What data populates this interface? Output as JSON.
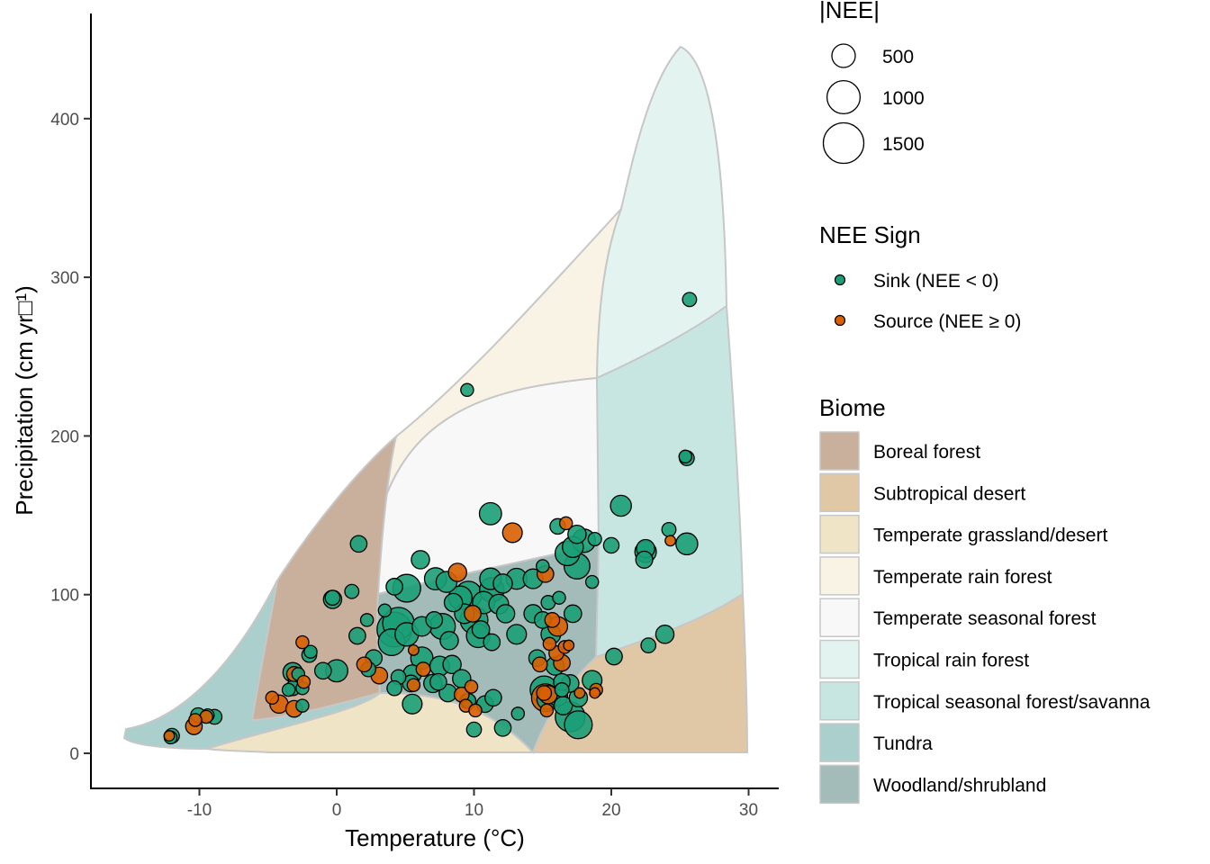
{
  "chart_data": {
    "type": "scatter",
    "title": "",
    "xlabel": "Temperature (°C)",
    "ylabel": "Precipitation (cm yr□¹)",
    "xlim": [
      -18,
      32
    ],
    "ylim": [
      -22,
      465
    ],
    "x_ticks": [
      -10,
      0,
      10,
      20,
      30
    ],
    "y_ticks": [
      0,
      100,
      200,
      300,
      400
    ],
    "grid": false,
    "legend_position": "right",
    "size_legend": {
      "title": "|NEE|",
      "items": [
        {
          "label": "500",
          "value": 500
        },
        {
          "label": "1000",
          "value": 1000
        },
        {
          "label": "1500",
          "value": 1500
        }
      ]
    },
    "sign_legend": {
      "title": "NEE Sign",
      "items": [
        {
          "label": "Sink (NEE < 0)",
          "color": "#1b9e77"
        },
        {
          "label": "Source (NEE ≥ 0)",
          "color": "#d95f02"
        }
      ]
    },
    "biome_legend": {
      "title": "Biome",
      "items": [
        {
          "label": "Boreal forest",
          "color": "#c9b09c"
        },
        {
          "label": "Subtropical desert",
          "color": "#e0c8a7"
        },
        {
          "label": "Temperate grassland/desert",
          "color": "#f0e4c6"
        },
        {
          "label": "Temperate rain forest",
          "color": "#f8f3e4"
        },
        {
          "label": "Temperate seasonal forest",
          "color": "#f8f8f8"
        },
        {
          "label": "Tropical rain forest",
          "color": "#e3f3f0"
        },
        {
          "label": "Tropical seasonal forest/savanna",
          "color": "#c7e6e2"
        },
        {
          "label": "Tundra",
          "color": "#abcfcc"
        },
        {
          "label": "Woodland/shrubland",
          "color": "#a3bcba"
        }
      ]
    },
    "series": [
      {
        "name": "Sink (NEE < 0)",
        "color": "#1b9e77",
        "points": [
          [
            25.7,
            286,
            180
          ],
          [
            9.5,
            229,
            150
          ],
          [
            25.5,
            186,
            200
          ],
          [
            25.4,
            187,
            150
          ],
          [
            11.2,
            151,
            450
          ],
          [
            20.7,
            156,
            400
          ],
          [
            24.2,
            141,
            180
          ],
          [
            25.5,
            132,
            430
          ],
          [
            22.5,
            129,
            300
          ],
          [
            22.5,
            127,
            420
          ],
          [
            22.4,
            122,
            260
          ],
          [
            20.0,
            131,
            220
          ],
          [
            18.0,
            134,
            500
          ],
          [
            18.8,
            135,
            160
          ],
          [
            16.1,
            143,
            220
          ],
          [
            17.5,
            138,
            300
          ],
          [
            17.2,
            130,
            400
          ],
          [
            16.8,
            126,
            550
          ],
          [
            17.5,
            118,
            600
          ],
          [
            18.6,
            108,
            150
          ],
          [
            15.0,
            118,
            150
          ],
          [
            14.3,
            110,
            350
          ],
          [
            13.1,
            110,
            400
          ],
          [
            12.1,
            107,
            330
          ],
          [
            11.2,
            110,
            420
          ],
          [
            11.3,
            103,
            550
          ],
          [
            10.7,
            95,
            450
          ],
          [
            9.6,
            100,
            650
          ],
          [
            9.0,
            98,
            500
          ],
          [
            8.5,
            95,
            300
          ],
          [
            8.0,
            108,
            400
          ],
          [
            7.2,
            110,
            450
          ],
          [
            6.1,
            122,
            300
          ],
          [
            5.1,
            104,
            700
          ],
          [
            4.2,
            105,
            250
          ],
          [
            3.5,
            90,
            150
          ],
          [
            4.5,
            82,
            900
          ],
          [
            4.2,
            78,
            1100
          ],
          [
            4.0,
            70,
            650
          ],
          [
            5.1,
            75,
            500
          ],
          [
            6.2,
            80,
            350
          ],
          [
            7.1,
            84,
            250
          ],
          [
            7.7,
            80,
            600
          ],
          [
            8.2,
            71,
            300
          ],
          [
            9.3,
            88,
            350
          ],
          [
            10.0,
            84,
            700
          ],
          [
            10.5,
            78,
            280
          ],
          [
            10.3,
            74,
            500
          ],
          [
            11.3,
            70,
            250
          ],
          [
            11.8,
            94,
            350
          ],
          [
            12.3,
            88,
            300
          ],
          [
            13.1,
            75,
            350
          ],
          [
            14.3,
            88,
            300
          ],
          [
            15.0,
            84,
            250
          ],
          [
            15.4,
            95,
            180
          ],
          [
            16.2,
            98,
            150
          ],
          [
            17.2,
            88,
            280
          ],
          [
            15.6,
            75,
            350
          ],
          [
            14.6,
            60,
            250
          ],
          [
            15.9,
            55,
            300
          ],
          [
            16.4,
            45,
            250
          ],
          [
            15.1,
            40,
            700
          ],
          [
            15.3,
            34,
            350
          ],
          [
            16.1,
            36,
            350
          ],
          [
            17.0,
            44,
            280
          ],
          [
            16.4,
            40,
            180
          ],
          [
            16.5,
            30,
            300
          ],
          [
            17.0,
            23,
            800
          ],
          [
            17.6,
            18,
            700
          ],
          [
            17.6,
            35,
            300
          ],
          [
            18.6,
            46,
            350
          ],
          [
            20.2,
            61,
            250
          ],
          [
            22.7,
            68,
            200
          ],
          [
            23.9,
            75,
            300
          ],
          [
            13.2,
            25,
            150
          ],
          [
            12.1,
            16,
            250
          ],
          [
            10.0,
            15,
            200
          ],
          [
            10.8,
            31,
            250
          ],
          [
            11.4,
            35,
            250
          ],
          [
            9.5,
            33,
            200
          ],
          [
            8.1,
            38,
            280
          ],
          [
            7.5,
            55,
            350
          ],
          [
            7.0,
            44,
            300
          ],
          [
            6.2,
            60,
            450
          ],
          [
            5.5,
            50,
            300
          ],
          [
            5.4,
            44,
            250
          ],
          [
            4.5,
            48,
            200
          ],
          [
            4.2,
            41,
            200
          ],
          [
            5.5,
            31,
            350
          ],
          [
            7.4,
            45,
            250
          ],
          [
            8.4,
            56,
            300
          ],
          [
            9.1,
            47,
            300
          ],
          [
            9.6,
            33,
            200
          ],
          [
            2.7,
            60,
            250
          ],
          [
            2.3,
            53,
            200
          ],
          [
            1.5,
            74,
            250
          ],
          [
            2.2,
            84,
            150
          ],
          [
            1.1,
            102,
            180
          ],
          [
            -0.3,
            97,
            300
          ],
          [
            -0.3,
            98,
            200
          ],
          [
            1.6,
            132,
            250
          ],
          [
            0.0,
            52,
            450
          ],
          [
            -1.0,
            52,
            250
          ],
          [
            -2.8,
            50,
            150
          ],
          [
            -3.2,
            51,
            350
          ],
          [
            -3.0,
            47,
            200
          ],
          [
            -3.2,
            41,
            200
          ],
          [
            -3.5,
            40,
            150
          ],
          [
            -2.5,
            41,
            150
          ],
          [
            -2.5,
            30,
            150
          ],
          [
            -2.0,
            62,
            200
          ],
          [
            -1.9,
            64,
            150
          ],
          [
            -10.1,
            24,
            200
          ],
          [
            -9.4,
            24,
            150
          ],
          [
            -8.9,
            23,
            200
          ],
          [
            -12.0,
            11,
            200
          ],
          [
            -12.1,
            10,
            150
          ]
        ]
      },
      {
        "name": "Source (NEE ≥ 0)",
        "color": "#d95f02",
        "points": [
          [
            12.8,
            139,
            350
          ],
          [
            16.7,
            145,
            150
          ],
          [
            15.2,
            113,
            250
          ],
          [
            8.8,
            114,
            300
          ],
          [
            24.3,
            134,
            100
          ],
          [
            16.1,
            80,
            350
          ],
          [
            15.7,
            84,
            200
          ],
          [
            16.6,
            67,
            150
          ],
          [
            15.5,
            69,
            150
          ],
          [
            16.0,
            63,
            200
          ],
          [
            16.4,
            57,
            250
          ],
          [
            16.9,
            68,
            100
          ],
          [
            18.9,
            40,
            150
          ],
          [
            17.7,
            38,
            100
          ],
          [
            14.8,
            56,
            200
          ],
          [
            15.2,
            35,
            700
          ],
          [
            15.4,
            37,
            300
          ],
          [
            15.1,
            38,
            200
          ],
          [
            15.3,
            27,
            150
          ],
          [
            9.8,
            42,
            150
          ],
          [
            9.1,
            37,
            200
          ],
          [
            9.4,
            30,
            150
          ],
          [
            10.1,
            27,
            150
          ],
          [
            9.9,
            88,
            250
          ],
          [
            5.6,
            65,
            100
          ],
          [
            6.3,
            53,
            180
          ],
          [
            5.6,
            43,
            150
          ],
          [
            2.0,
            56,
            200
          ],
          [
            3.1,
            49,
            250
          ],
          [
            -2.5,
            70,
            150
          ],
          [
            -3.1,
            50,
            200
          ],
          [
            -2.4,
            45,
            150
          ],
          [
            -4.2,
            31,
            300
          ],
          [
            -3.1,
            28,
            250
          ],
          [
            -4.7,
            35,
            150
          ],
          [
            -10.4,
            17,
            250
          ],
          [
            -9.5,
            23,
            150
          ],
          [
            -10.3,
            21,
            150
          ],
          [
            -12.2,
            11,
            100
          ],
          [
            18.8,
            38,
            100
          ]
        ]
      }
    ]
  }
}
